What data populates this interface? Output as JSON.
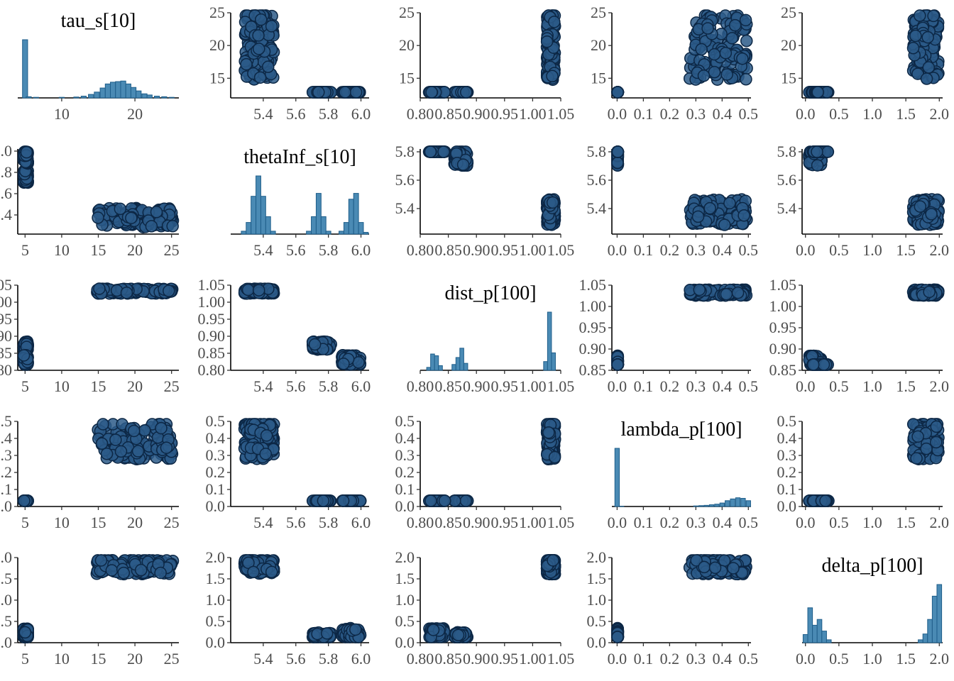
{
  "chart_data": {
    "type": "scatter",
    "layout": "pairs-matrix",
    "variables": [
      {
        "name": "tau_s[10]",
        "range": [
          4,
          26
        ],
        "ticks": [
          "10",
          "20"
        ],
        "ticks_scatter": [
          "5",
          "10",
          "15",
          "20",
          "25"
        ],
        "tick_values": [
          10,
          20
        ],
        "tick_values_scatter": [
          5,
          10,
          15,
          20,
          25
        ],
        "hist": {
          "bins": [
            [
              5.0,
              1.0
            ],
            [
              5.5,
              0.02
            ],
            [
              6.5,
              0.01
            ],
            [
              10,
              0.01
            ],
            [
              12,
              0.015
            ],
            [
              13,
              0.03
            ],
            [
              14,
              0.06
            ],
            [
              14.8,
              0.1
            ],
            [
              15.6,
              0.17
            ],
            [
              16.3,
              0.24
            ],
            [
              17.0,
              0.27
            ],
            [
              17.7,
              0.28
            ],
            [
              18.4,
              0.29
            ],
            [
              19.1,
              0.24
            ],
            [
              19.8,
              0.18
            ],
            [
              20.5,
              0.12
            ],
            [
              21.3,
              0.07
            ],
            [
              22.0,
              0.05
            ],
            [
              23,
              0.03
            ],
            [
              24,
              0.02
            ],
            [
              25,
              0.01
            ]
          ],
          "bin_width": 0.7
        }
      },
      {
        "name": "thetaInf_s[10]",
        "range": [
          5.2,
          6.05
        ],
        "ticks": [
          "5.4",
          "5.6",
          "5.8",
          "6.0"
        ],
        "tick_values": [
          5.4,
          5.6,
          5.8,
          6.0
        ],
        "hist": {
          "bins": [
            [
              5.28,
              0.05
            ],
            [
              5.31,
              0.2
            ],
            [
              5.34,
              0.65
            ],
            [
              5.37,
              1.0
            ],
            [
              5.4,
              0.65
            ],
            [
              5.43,
              0.3
            ],
            [
              5.46,
              0.05
            ],
            [
              5.68,
              0.05
            ],
            [
              5.71,
              0.3
            ],
            [
              5.74,
              0.7
            ],
            [
              5.77,
              0.3
            ],
            [
              5.8,
              0.05
            ],
            [
              5.88,
              0.05
            ],
            [
              5.91,
              0.2
            ],
            [
              5.94,
              0.6
            ],
            [
              5.97,
              0.7
            ],
            [
              6.0,
              0.2
            ],
            [
              6.03,
              0.03
            ]
          ],
          "bin_width": 0.03
        }
      },
      {
        "name": "dist_p[100]",
        "range": [
          0.8,
          1.05
        ],
        "ticks": [
          "0.80",
          "0.85",
          "0.90",
          "0.95",
          "1.00",
          "1.05"
        ],
        "tick_values": [
          0.8,
          0.85,
          0.9,
          0.95,
          1.0,
          1.05
        ],
        "hist": {
          "bins": [
            [
              0.815,
              0.05
            ],
            [
              0.822,
              0.28
            ],
            [
              0.829,
              0.25
            ],
            [
              0.836,
              0.08
            ],
            [
              0.86,
              0.1
            ],
            [
              0.867,
              0.22
            ],
            [
              0.874,
              0.38
            ],
            [
              0.881,
              0.12
            ],
            [
              1.023,
              0.15
            ],
            [
              1.03,
              1.0
            ],
            [
              1.037,
              0.3
            ]
          ],
          "bin_width": 0.007
        }
      },
      {
        "name": "lambda_p[100]",
        "range": [
          -0.02,
          0.51
        ],
        "ticks": [
          "0.0",
          "0.1",
          "0.2",
          "0.3",
          "0.4",
          "0.5"
        ],
        "tick_values": [
          0.0,
          0.1,
          0.2,
          0.3,
          0.4,
          0.5
        ],
        "hist": {
          "bins": [
            [
              0.0,
              1.0
            ],
            [
              0.017,
              0.005
            ],
            [
              0.3,
              0.01
            ],
            [
              0.32,
              0.015
            ],
            [
              0.34,
              0.02
            ],
            [
              0.36,
              0.03
            ],
            [
              0.38,
              0.04
            ],
            [
              0.4,
              0.06
            ],
            [
              0.42,
              0.1
            ],
            [
              0.44,
              0.13
            ],
            [
              0.46,
              0.15
            ],
            [
              0.48,
              0.14
            ],
            [
              0.5,
              0.1
            ]
          ],
          "bin_width": 0.017
        }
      },
      {
        "name": "delta_p[100]",
        "range": [
          -0.05,
          2.05
        ],
        "ticks": [
          "0.0",
          "0.5",
          "1.0",
          "1.5",
          "2.0"
        ],
        "tick_values": [
          0.0,
          0.5,
          1.0,
          1.5,
          2.0
        ],
        "hist": {
          "bins": [
            [
              0.0,
              0.14
            ],
            [
              0.07,
              0.6
            ],
            [
              0.14,
              0.3
            ],
            [
              0.21,
              0.4
            ],
            [
              0.28,
              0.2
            ],
            [
              0.35,
              0.05
            ],
            [
              1.72,
              0.05
            ],
            [
              1.79,
              0.15
            ],
            [
              1.86,
              0.4
            ],
            [
              1.93,
              0.8
            ],
            [
              2.0,
              1.0
            ]
          ],
          "bin_width": 0.07
        }
      }
    ],
    "y_axes": [
      {
        "range": [
          12,
          25
        ],
        "ticks": [
          "15",
          "20",
          "25"
        ],
        "tick_values": [
          15,
          20,
          25
        ]
      },
      {
        "range": [
          5.22,
          6.02
        ],
        "ticks": [
          "5.4",
          "5.6",
          "5.8",
          "6.0"
        ],
        "tick_values": [
          5.4,
          5.6,
          5.8,
          6.0
        ]
      },
      {
        "range": [
          0.8,
          1.05
        ],
        "ticks": [
          "0.80",
          "0.85",
          "0.90",
          "0.95",
          "1.00",
          "1.05"
        ],
        "tick_values": [
          0.8,
          0.85,
          0.9,
          0.95,
          1.0,
          1.05
        ]
      },
      {
        "range": [
          0.0,
          0.5
        ],
        "ticks": [
          "0.0",
          "0.1",
          "0.2",
          "0.3",
          "0.4",
          "0.5"
        ],
        "tick_values": [
          0.0,
          0.1,
          0.2,
          0.3,
          0.4,
          0.5
        ]
      },
      {
        "range": [
          0.0,
          2.0
        ],
        "ticks": [
          "0.0",
          "0.5",
          "1.0",
          "1.5",
          "2.0"
        ],
        "tick_values": [
          0.0,
          0.5,
          1.0,
          1.5,
          2.0
        ]
      }
    ],
    "panel_overrides": {
      "0-3": {
        "xticks": [
          "0.0",
          "0.1",
          "0.2",
          "0.3",
          "0.4",
          "0.5"
        ]
      },
      "1-2": {
        "yrange": [
          5.22,
          5.82
        ],
        "yticks": [
          "5.4",
          "5.6",
          "5.8"
        ],
        "ytick_values": [
          5.4,
          5.6,
          5.8
        ]
      },
      "1-3": {
        "yrange": [
          5.22,
          5.82
        ],
        "yticks": [
          "5.4",
          "5.6",
          "5.8"
        ],
        "ytick_values": [
          5.4,
          5.6,
          5.8
        ]
      },
      "1-4": {
        "yrange": [
          5.22,
          5.82
        ],
        "yticks": [
          "5.4",
          "5.6",
          "5.8"
        ],
        "ytick_values": [
          5.4,
          5.6,
          5.8
        ]
      },
      "2-3": {
        "yrange": [
          0.85,
          1.05
        ],
        "yticks": [
          "0.85",
          "0.90",
          "0.95",
          "1.00",
          "1.05"
        ],
        "ytick_values": [
          0.85,
          0.9,
          0.95,
          1.0,
          1.05
        ]
      },
      "2-4": {
        "yrange": [
          0.85,
          1.05
        ],
        "yticks": [
          "0.85",
          "0.90",
          "0.95",
          "1.00",
          "1.05"
        ],
        "ytick_values": [
          0.85,
          0.9,
          0.95,
          1.0,
          1.05
        ]
      }
    },
    "modes": [
      {
        "tau": [
          4.8,
          5.4
        ],
        "theta": [
          5.7,
          5.82
        ],
        "dist": [
          0.86,
          0.885
        ],
        "lambda": [
          0.0,
          0.003
        ],
        "delta": [
          0.05,
          0.25
        ]
      },
      {
        "tau": [
          14.5,
          25.5
        ],
        "theta": [
          5.28,
          5.47
        ],
        "dist": [
          1.025,
          1.04
        ],
        "lambda": [
          0.27,
          0.5
        ],
        "delta": [
          1.6,
          2.0
        ]
      },
      {
        "tau": [
          4.8,
          5.4
        ],
        "theta": [
          5.88,
          6.0
        ],
        "dist": [
          0.815,
          0.845
        ],
        "lambda": [
          0.0,
          0.003
        ],
        "delta": [
          0.1,
          0.35
        ]
      }
    ],
    "grid": false,
    "legend": "none"
  }
}
